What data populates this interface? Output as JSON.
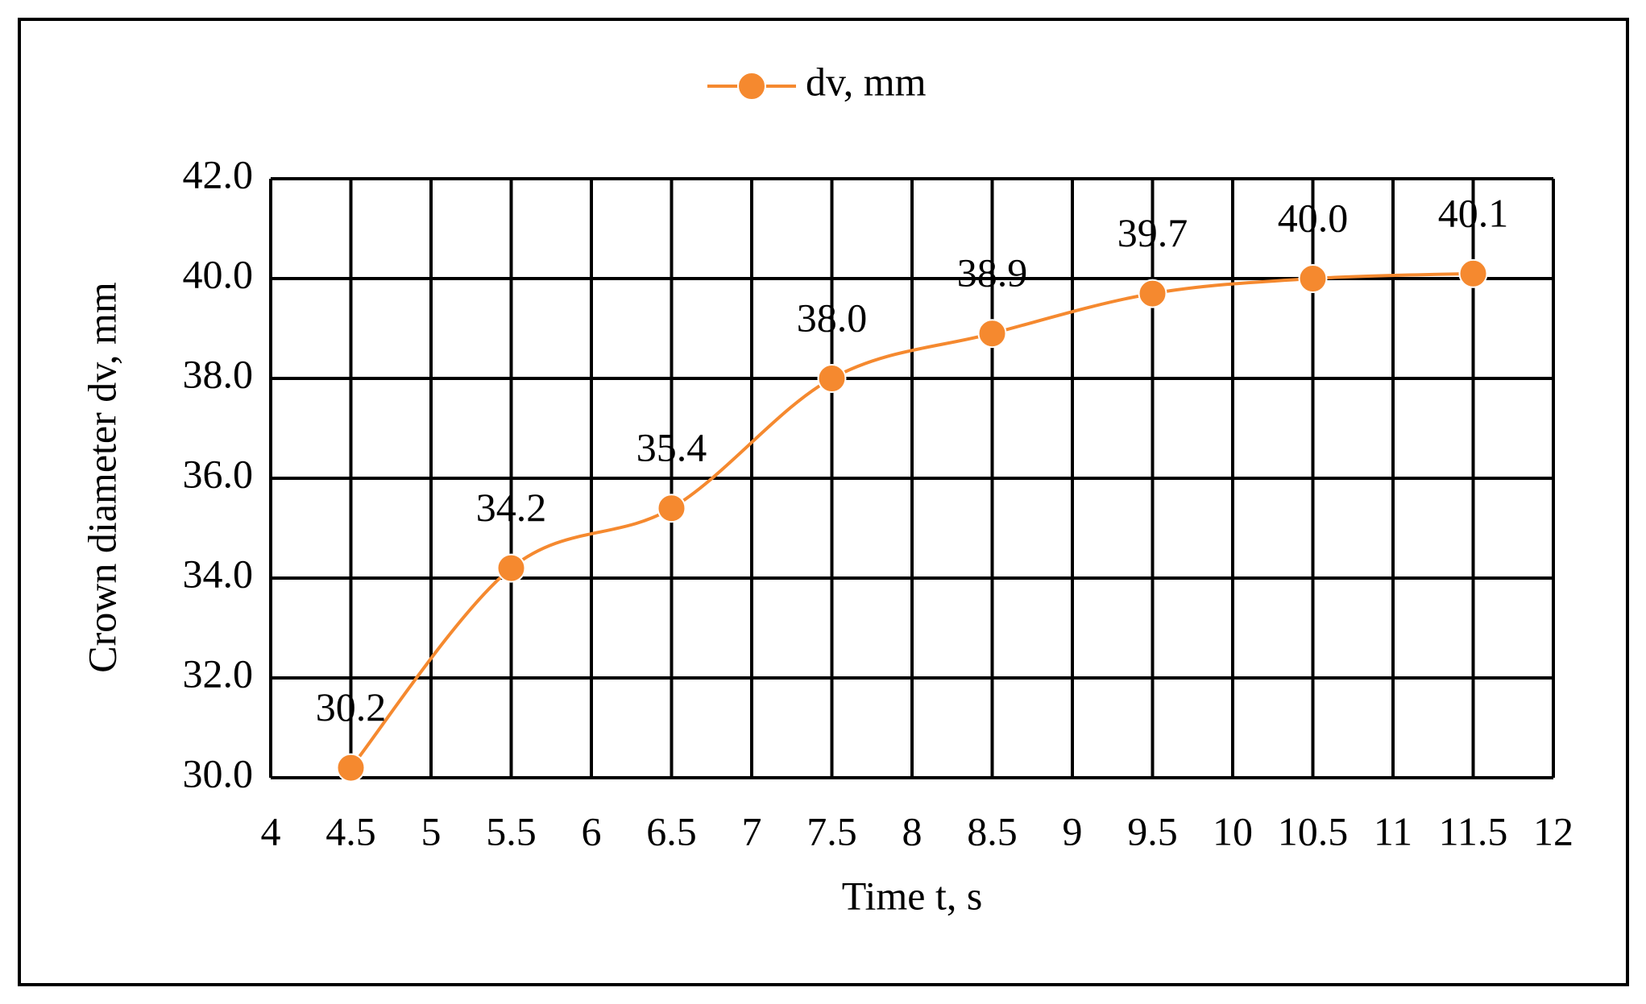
{
  "chart_data": {
    "type": "line",
    "xlabel": "Time t, s",
    "ylabel": "Crown diameter dv, mm",
    "x": [
      4.5,
      5.5,
      6.5,
      7.5,
      8.5,
      9.5,
      10.5,
      11.5
    ],
    "series": [
      {
        "name": "dv, mm",
        "color": "#f5892f",
        "values": [
          30.2,
          34.2,
          35.4,
          38.0,
          38.9,
          39.7,
          40.0,
          40.1
        ],
        "value_labels": [
          "30.2",
          "34.2",
          "35.4",
          "38.0",
          "38.9",
          "39.7",
          "40.0",
          "40.1"
        ]
      }
    ],
    "xlim": [
      4,
      12
    ],
    "xticks": [
      4,
      4.5,
      5,
      5.5,
      6,
      6.5,
      7,
      7.5,
      8,
      8.5,
      9,
      9.5,
      10,
      10.5,
      11,
      11.5,
      12
    ],
    "ylim": [
      30,
      42
    ],
    "yticks": [
      {
        "value": 30,
        "label": "30.0"
      },
      {
        "value": 32,
        "label": "32.0"
      },
      {
        "value": 34,
        "label": "34.0"
      },
      {
        "value": 36,
        "label": "36.0"
      },
      {
        "value": 38,
        "label": "38.0"
      },
      {
        "value": 40,
        "label": "40.0"
      },
      {
        "value": 42,
        "label": "42.0"
      }
    ],
    "grid": true,
    "smooth": true,
    "legend": "top"
  }
}
